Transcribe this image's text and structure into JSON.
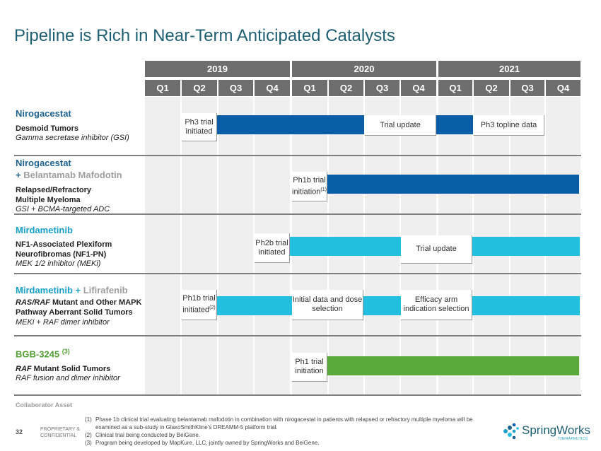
{
  "title": "Pipeline is Rich in Near-Term Anticipated Catalysts",
  "years": [
    "2019",
    "2020",
    "2021"
  ],
  "quarters": [
    "Q1",
    "Q2",
    "Q3",
    "Q4",
    "Q1",
    "Q2",
    "Q3",
    "Q4",
    "Q1",
    "Q2",
    "Q3",
    "Q4"
  ],
  "colors": {
    "dark_blue": "#0a5ea8",
    "light_blue": "#22bfe0",
    "green": "#5aaa3b",
    "teal_title": "#1f5f73",
    "grey_text": "#9e9e9e",
    "drug_blue": "#1f6391",
    "drug_teal": "#1aa0c8",
    "drug_green": "#52a034"
  },
  "rows": {
    "r1": {
      "drug": "Nirogacestat",
      "indication": "Desmoid Tumors",
      "moa": "Gamma secretase inhibitor (GSI)",
      "m1": "Ph3 trial initiated",
      "m2": "Trial update",
      "m3": "Ph3 topline data"
    },
    "r2": {
      "drug": "Nirogacestat",
      "plus": "+ ",
      "partner": "Belantamab Mafodotin",
      "indication1": "Relapsed/Refractory",
      "indication2": "Multiple Myeloma",
      "moa": "GSI + BCMA-targeted ADC",
      "m1": "Ph1b trial initiation",
      "m1_note": "(1)"
    },
    "r3": {
      "drug": "Mirdametinib",
      "indication1": "NF1-Associated Plexiform",
      "indication2": "Neurofibromas (NF1-PN)",
      "moa": "MEK 1/2 inhibitor (MEKi)",
      "m1": "Ph2b trial initiated",
      "m2": "Trial update"
    },
    "r4": {
      "drug": "Mirdametinib",
      "plus": " + ",
      "partner": "Lifirafenib",
      "indication1_italic": "RAS/RAF",
      "indication1_rest": " Mutant and Other MAPK",
      "indication2": "Pathway Aberrant Solid Tumors",
      "moa": "MEKi + RAF dimer inhibitor",
      "m1": "Ph1b trial initiated",
      "m1_note": "(2)",
      "m2": "Initial data and dose selection",
      "m3": "Efficacy arm indication selection"
    },
    "r5": {
      "drug": "BGB-3245 ",
      "drug_note": "(3)",
      "indication_italic": "RAF",
      "indication_rest": " Mutant Solid Tumors",
      "moa": "RAF fusion and dimer inhibitor",
      "m1": "Ph1 trial initiation"
    }
  },
  "collaborator": "Collaborator Asset",
  "footer": {
    "page": "32",
    "proprietary": "PROPRIETARY &",
    "confidential": "CONFIDENTIAL",
    "notes": [
      {
        "num": "(1)",
        "text": "Phase 1b clinical trial evaluating belantamab mafodotin in combination with nirogacestat in patients with relapsed or refractory multiple myeloma will be"
      },
      {
        "num": "",
        "text": "examined as a sub-study in GlaxoSmithKline’s DREAMM-5 platform trial."
      },
      {
        "num": "(2)",
        "text": "Clinical trial being conducted by BeiGene."
      },
      {
        "num": "(3)",
        "text": "Program being developed by MapKure, LLC, jointly owned by SpringWorks and BeiGene."
      }
    ],
    "logo_name": "SpringWorks",
    "logo_sub": "THERAPEUTICS"
  }
}
